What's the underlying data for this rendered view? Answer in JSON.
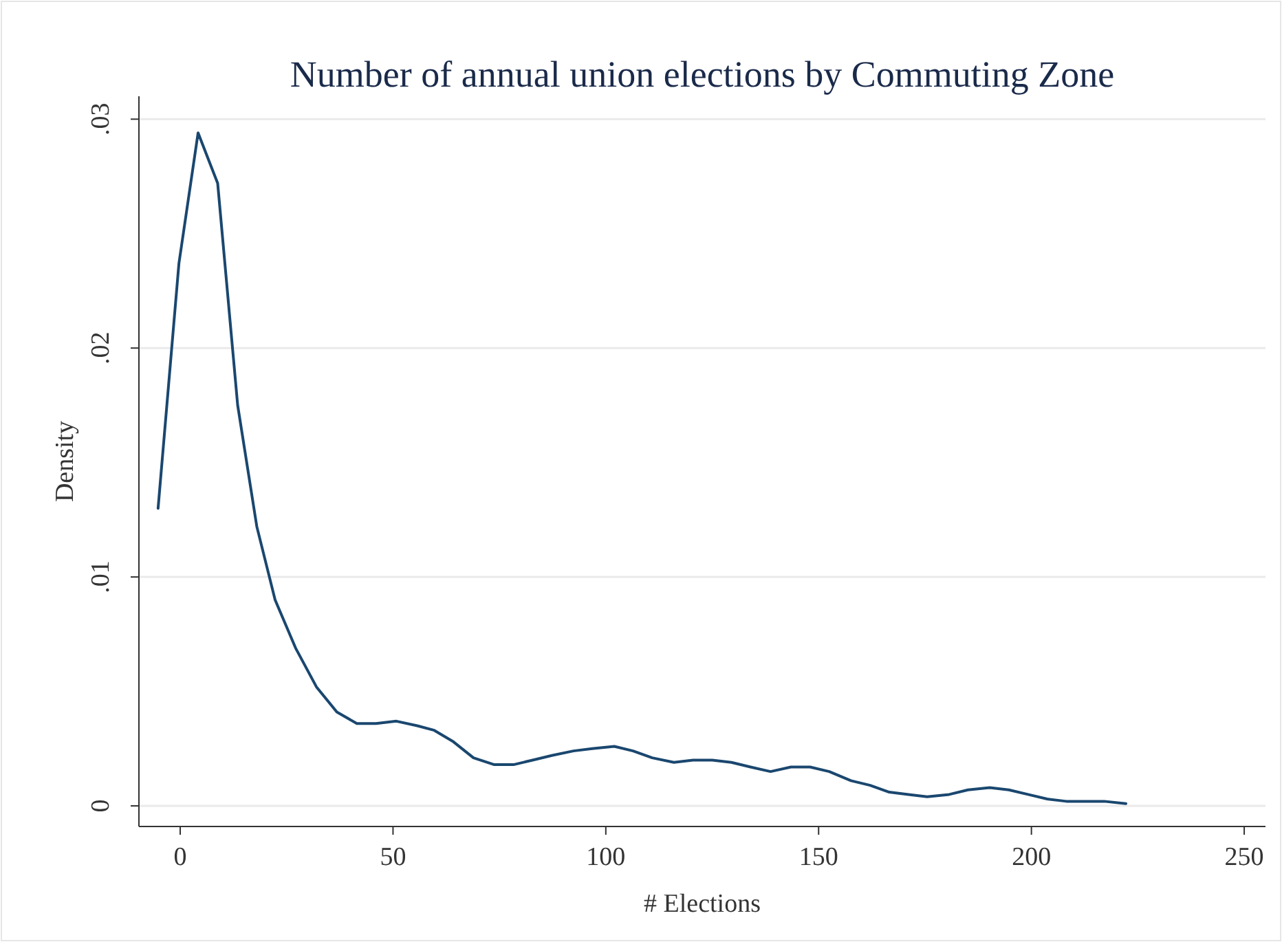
{
  "chart_data": {
    "type": "line",
    "title": "Number of annual union elections by Commuting Zone",
    "xlabel": "# Elections",
    "ylabel": "Density",
    "xlim": [
      -9.7,
      255
    ],
    "xticks": [
      0,
      50,
      100,
      150,
      200,
      250
    ],
    "ylim": [
      -0.0009,
      0.031
    ],
    "yticks": [
      {
        "value": 0,
        "label": "0"
      },
      {
        "value": 0.01,
        "label": ".01"
      },
      {
        "value": 0.02,
        "label": ".02"
      },
      {
        "value": 0.03,
        "label": ".03"
      }
    ],
    "grid": "y",
    "series": [
      {
        "color": "#1a476f",
        "x": [
          -5.2,
          -0.3,
          4.2,
          8.8,
          13.5,
          18,
          22.3,
          27.1,
          32,
          36.8,
          41.5,
          46,
          50.8,
          55.7,
          59.7,
          64.2,
          68.9,
          73.8,
          78.3,
          82.8,
          87.3,
          92.4,
          96.8,
          102,
          106.4,
          110.9,
          116,
          120.5,
          125,
          129.5,
          134,
          138.7,
          143.5,
          148,
          152.5,
          157.6,
          162.1,
          166.6,
          171.1,
          175.5,
          180.7,
          185.1,
          190.2,
          194.7,
          199.2,
          203.7,
          208.2,
          217.1,
          222.2
        ],
        "values": [
          0.013,
          0.0237,
          0.0294,
          0.0272,
          0.0175,
          0.0122,
          0.009,
          0.0069,
          0.0052,
          0.0041,
          0.0036,
          0.0036,
          0.0037,
          0.0035,
          0.0033,
          0.0028,
          0.0021,
          0.0018,
          0.0018,
          0.002,
          0.0022,
          0.0024,
          0.0025,
          0.0026,
          0.0024,
          0.0021,
          0.0019,
          0.002,
          0.002,
          0.0019,
          0.0017,
          0.0015,
          0.0017,
          0.0017,
          0.0015,
          0.0011,
          0.0009,
          0.0006,
          0.0005,
          0.0004,
          0.0005,
          0.0007,
          0.0008,
          0.0007,
          0.0005,
          0.0003,
          0.0002,
          0.0002,
          0.0001
        ]
      }
    ]
  }
}
